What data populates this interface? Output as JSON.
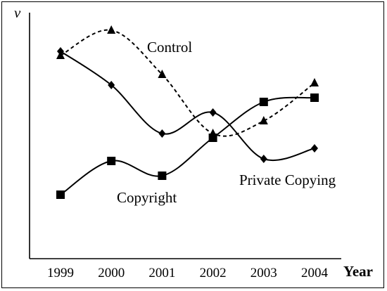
{
  "chart_data": {
    "type": "line",
    "title": "",
    "xlabel": "Year",
    "ylabel": "v",
    "categories": [
      "1999",
      "2000",
      "2001",
      "2002",
      "2003",
      "2004"
    ],
    "x_ticks": [
      "1999",
      "2000",
      "2001",
      "2002",
      "2003",
      "2004"
    ],
    "y_ticks": [],
    "ylim": [
      0,
      100
    ],
    "grid": false,
    "legend": "inline labels",
    "series": [
      {
        "name": "Control",
        "marker": "triangle",
        "line_style": "dashed",
        "color": "#000000",
        "values": [
          87,
          99,
          78,
          50,
          56,
          74
        ]
      },
      {
        "name": "Private Copying",
        "marker": "diamond",
        "line_style": "solid",
        "color": "#000000",
        "values": [
          89,
          73,
          50,
          60,
          38,
          43
        ]
      },
      {
        "name": "Copyright",
        "marker": "square",
        "line_style": "solid",
        "color": "#000000",
        "values": [
          21,
          37,
          30,
          48,
          65,
          67
        ]
      }
    ]
  }
}
